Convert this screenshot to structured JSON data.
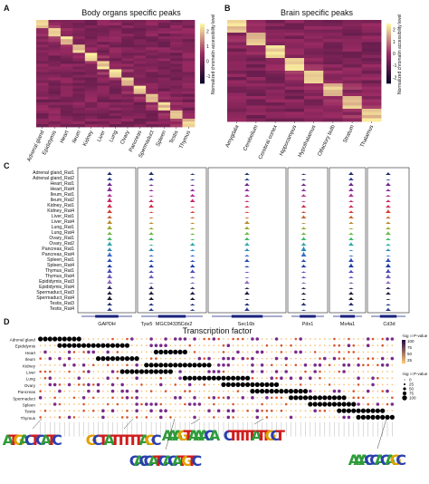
{
  "panels": {
    "A": {
      "letter": "A",
      "title": "Body organs specific peaks"
    },
    "B": {
      "letter": "B",
      "title": "Brain specific peaks"
    },
    "C": {
      "letter": "C"
    },
    "D": {
      "letter": "D",
      "title": "Transcription factor"
    }
  },
  "colors": {
    "heat_low": "#0d0628",
    "heat_mid": "#9b2b63",
    "heat_high": "#fdf3a0",
    "track_palette": [
      "#1b2a6b",
      "#2a3b8f",
      "#6a1f8a",
      "#8b2a9c",
      "#b02a8f",
      "#c42a6a",
      "#d0284a",
      "#d63a2a",
      "#c8602a",
      "#b8892a",
      "#9aa82a",
      "#6ab83a",
      "#3ab86a",
      "#2aa8a8",
      "#2a8ab8",
      "#3a6ac8",
      "#2a4ab8",
      "#1a3aa8",
      "#4a4ab8",
      "#6a5ab8",
      "#8a6ab8",
      "#2a2a5a",
      "#1a1a3a",
      "#1a1a2a"
    ]
  },
  "chart_data": [
    {
      "type": "heatmap",
      "panel": "A",
      "title": "Body organs specific peaks",
      "x_categories": [
        "Adrenal gland",
        "Epididymis",
        "Heart",
        "Ileum",
        "Kidney",
        "Liver",
        "Lung",
        "Ovary",
        "Pancreas",
        "Spermaduct",
        "Spleen",
        "Testis",
        "Thymus"
      ],
      "colorbar": {
        "label": "Normalized chromatin accessibility level",
        "ticks": [
          2,
          1,
          0,
          -1
        ],
        "range": [
          -1.5,
          2.5
        ]
      }
    },
    {
      "type": "heatmap",
      "panel": "B",
      "title": "Brain specific peaks",
      "x_categories": [
        "Amygdala",
        "Cerebellum",
        "Cerebral cortex",
        "Hippocampus",
        "Hypothalamus",
        "Olfactory bulb",
        "Stratum",
        "Thalamus"
      ],
      "colorbar": {
        "label": "Normalized chromatin accessibility level",
        "ticks": [
          2,
          1,
          0,
          -1,
          -2
        ],
        "range": [
          -2.5,
          2.5
        ]
      }
    },
    {
      "type": "area",
      "panel": "C",
      "tracks": [
        "Adrenal gland_Rat1",
        "Adrenal gland_Rat2",
        "Heart_Rat1",
        "Heart_Rat4",
        "Ileum_Rat1",
        "Ileum_Rat2",
        "Kidney_Rat1",
        "Kidney_Rat4",
        "Liver_Rat1",
        "Liver_Rat4",
        "Lung_Rat1",
        "Lung_Rat4",
        "Ovary_Rat1",
        "Ovary_Rat2",
        "Pancreas_Rat1",
        "Pancreas_Rat4",
        "Spleen_Rat1",
        "Spleen_Rat4",
        "Thymus_Rat1",
        "Thymus_Rat4",
        "Epididymis_Rat3",
        "Epididymis_Rat4",
        "Spermaduct_Rat3",
        "Spermaduct_Rat4",
        "Testis_Rat3",
        "Testis_Rat4"
      ],
      "genes": [
        "GAPDH",
        "Tyw5",
        "MGC94335",
        "Cdx2",
        "Sec16b",
        "Pdx1",
        "Ms4a1",
        "Cd3d"
      ]
    },
    {
      "type": "scatter",
      "panel": "D",
      "title": "Transcription factor",
      "y_categories": [
        "Adrenal gland",
        "Epididymis",
        "Heart",
        "Ileum",
        "Kidney",
        "Liver",
        "Lung",
        "Ovary",
        "Pancreas",
        "Spermaduct",
        "Spleen",
        "Testis",
        "Thymus"
      ],
      "color_legend": {
        "label": "-log10 P-value",
        "ticks": [
          100,
          75,
          50,
          25
        ]
      },
      "size_legend": {
        "label": "-log10 P-value",
        "ticks": [
          0,
          25,
          50,
          75,
          100
        ]
      },
      "motifs": [
        "ATGACTCATC",
        "GCTATTTTTAGC",
        "AAAGTAAACA",
        "CTTTTTATTGCT",
        "CACCATCACATGTC",
        "AAACCACAGC"
      ]
    }
  ]
}
